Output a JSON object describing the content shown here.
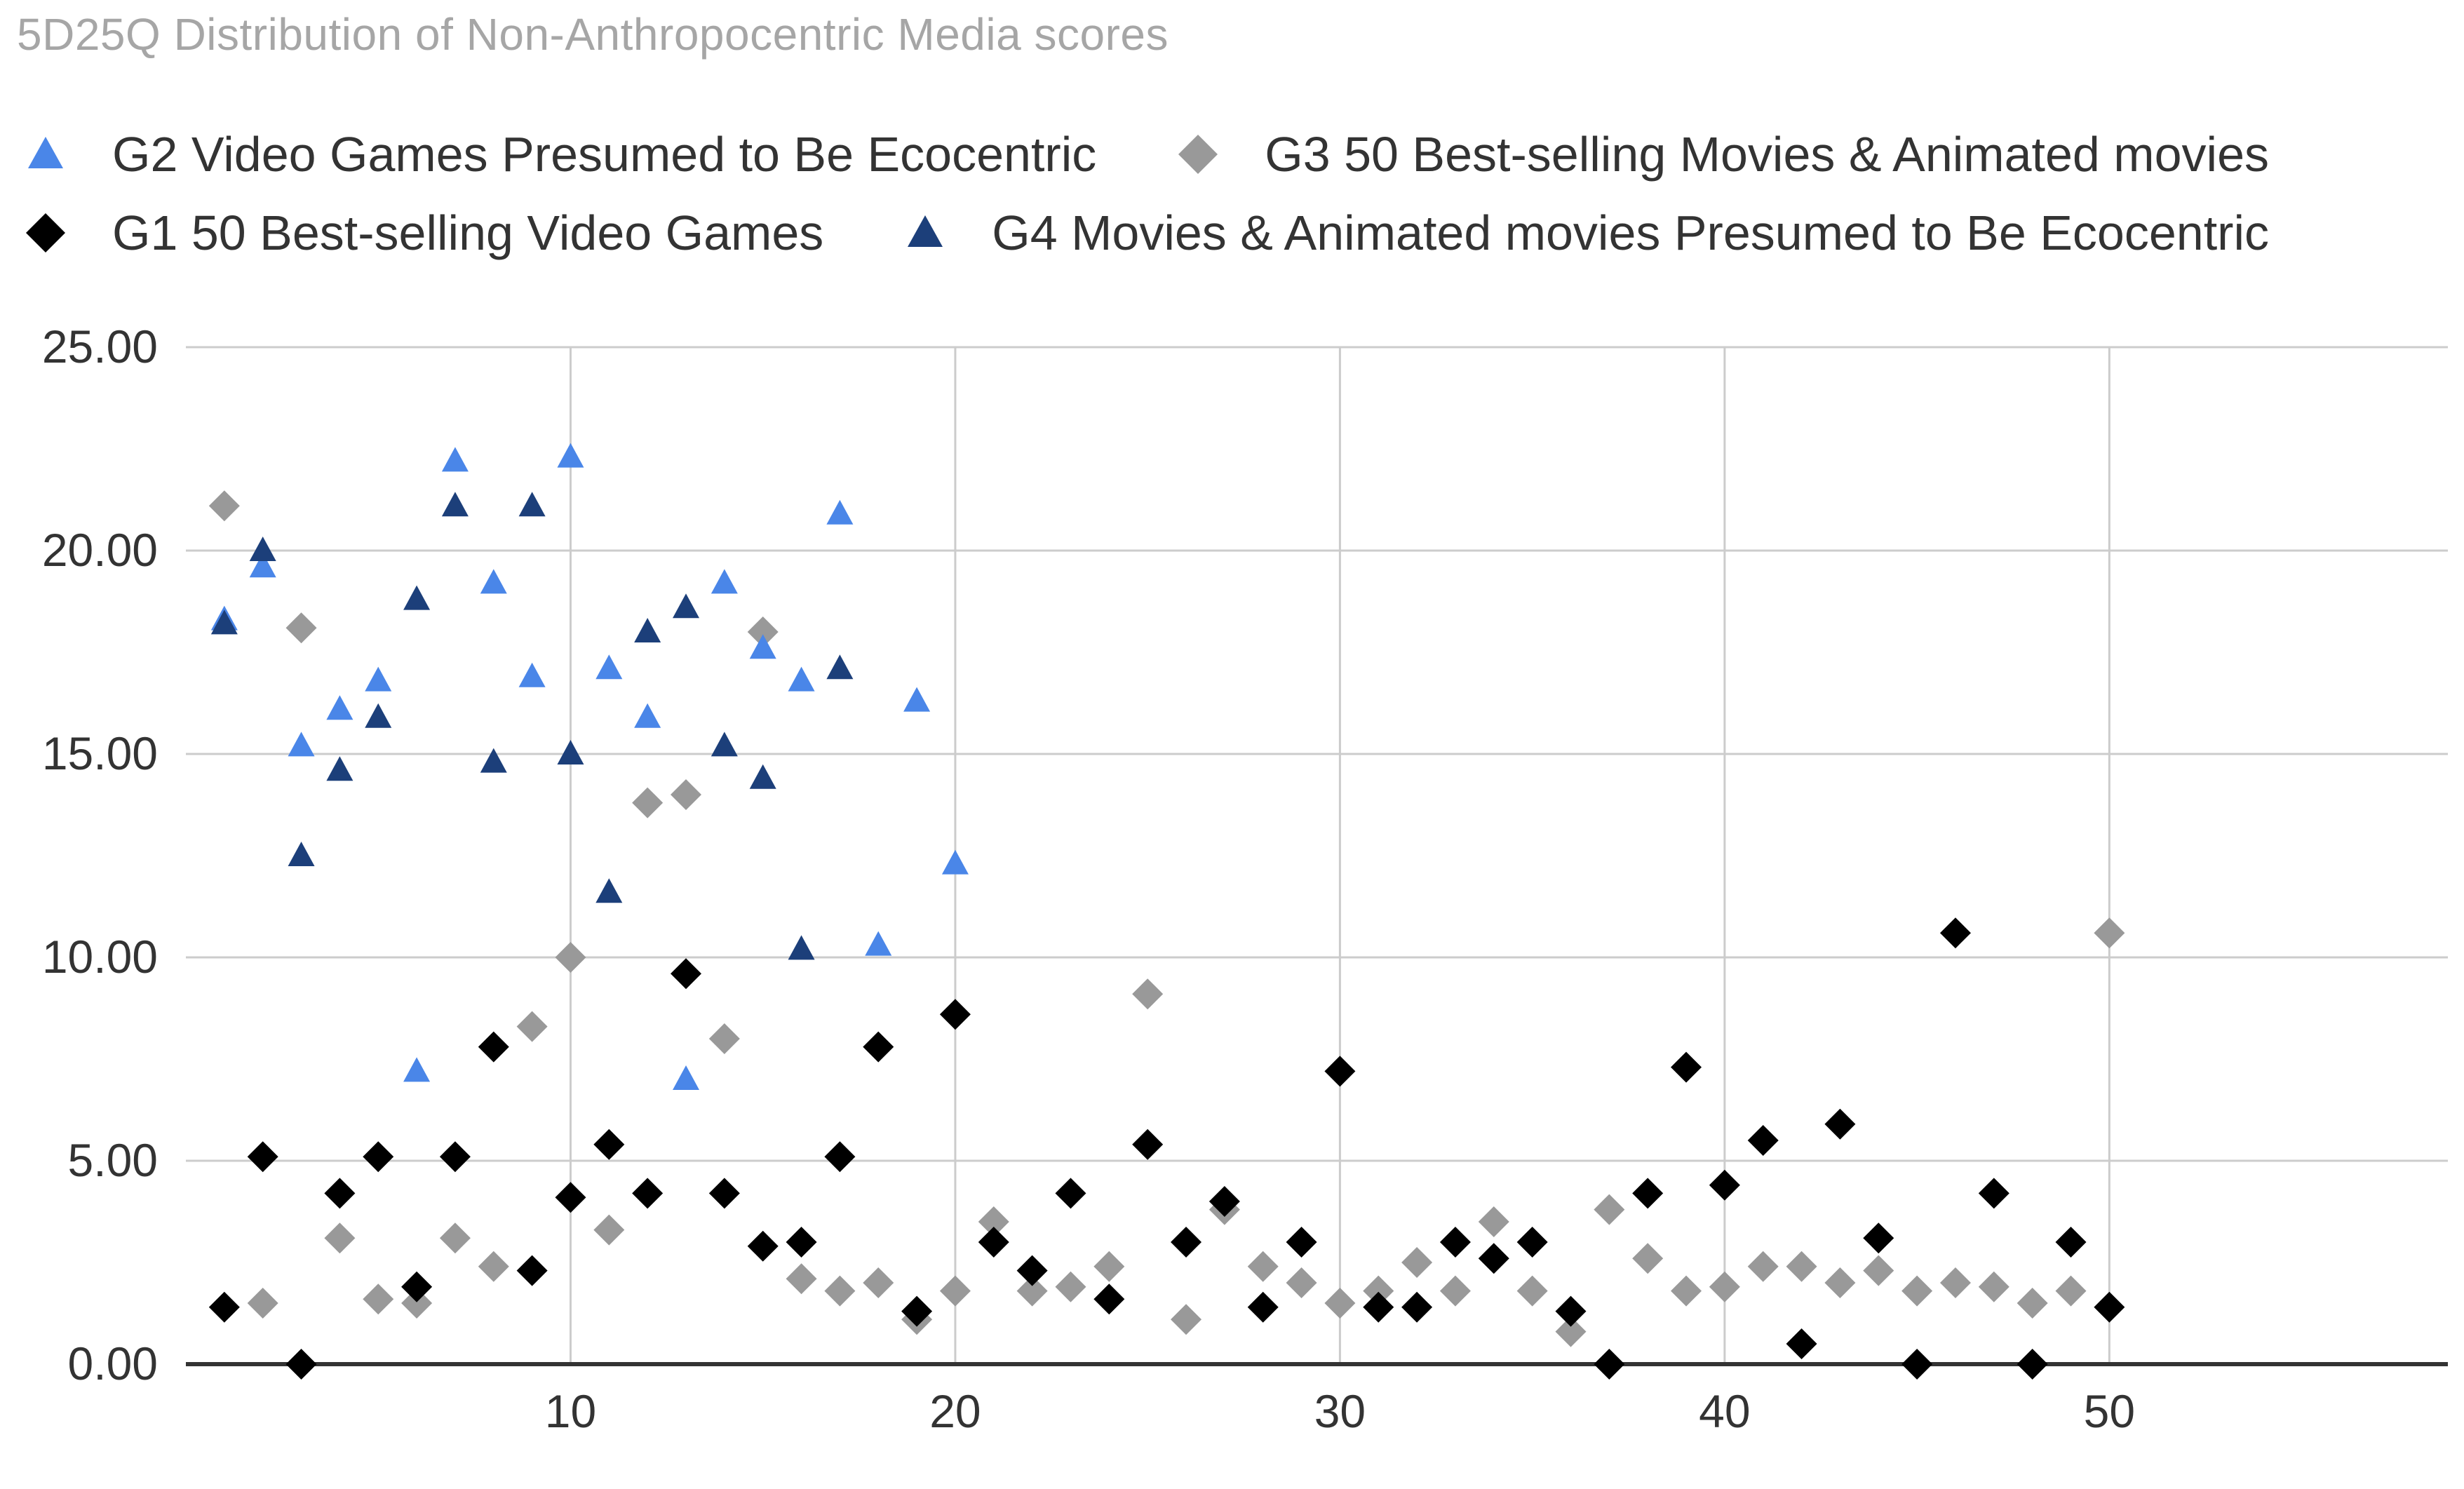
{
  "title": "5D25Q Distribution of Non-Anthropocentric Media scores",
  "legend": {
    "g2": "G2 Video Games Presumed to Be Ecocentric",
    "g3": "G3 50 Best-selling Movies & Animated movies",
    "g1": "G1 50 Best-selling Video Games",
    "g4": "G4 Movies & Animated movies Presumed to Be Ecocentric"
  },
  "colors": {
    "g1": "#000000",
    "g2": "#4a86e8",
    "g3": "#999999",
    "g4": "#1c3f7a",
    "grid": "#cccccc",
    "axis": "#333333"
  },
  "chart_data": {
    "type": "scatter",
    "title": "5D25Q Distribution of Non-Anthropocentric Media scores",
    "xlabel": "",
    "ylabel": "",
    "xlim": [
      0,
      58.8
    ],
    "ylim": [
      0,
      25
    ],
    "x_ticks": [
      "10",
      "20",
      "30",
      "40",
      "50"
    ],
    "y_ticks": [
      "0.00",
      "5.00",
      "10.00",
      "15.00",
      "20.00",
      "25.00"
    ],
    "grid": true,
    "legend_position": "top",
    "series": [
      {
        "key": "g2",
        "name": "G2 Video Games Presumed to Be Ecocentric",
        "marker": "triangle",
        "x": [
          1,
          2,
          3,
          4,
          5,
          6,
          7,
          8,
          9,
          10,
          11,
          12,
          13,
          14,
          15,
          16,
          17,
          18,
          19,
          20
        ],
        "y": [
          18.3,
          19.6,
          15.2,
          16.1,
          16.8,
          7.2,
          22.2,
          19.2,
          16.9,
          22.3,
          17.1,
          15.9,
          7.0,
          19.2,
          17.6,
          16.8,
          20.9,
          10.3,
          16.3,
          12.3
        ]
      },
      {
        "key": "g3",
        "name": "G3 50 Best-selling Movies & Animated movies",
        "marker": "diamond",
        "x": [
          1,
          2,
          3,
          4,
          5,
          6,
          7,
          8,
          9,
          10,
          11,
          12,
          13,
          14,
          15,
          16,
          17,
          18,
          19,
          20,
          21,
          22,
          23,
          24,
          25,
          26,
          27,
          28,
          29,
          30,
          31,
          32,
          33,
          34,
          35,
          36,
          37,
          38,
          39,
          40,
          41,
          42,
          43,
          44,
          45,
          46,
          47,
          48,
          49,
          50
        ],
        "y": [
          21.1,
          1.5,
          18.1,
          3.1,
          1.6,
          1.5,
          3.1,
          2.4,
          8.3,
          10.0,
          3.3,
          13.8,
          14.0,
          8.0,
          18.0,
          2.1,
          1.8,
          2.0,
          1.1,
          1.8,
          3.5,
          1.8,
          1.9,
          2.4,
          9.1,
          1.1,
          3.8,
          2.4,
          2.0,
          1.5,
          1.8,
          2.5,
          1.8,
          3.5,
          1.8,
          0.8,
          3.8,
          2.6,
          1.8,
          1.9,
          2.4,
          2.4,
          2.0,
          2.3,
          1.8,
          2.0,
          1.9,
          1.5,
          1.8,
          10.6
        ]
      },
      {
        "key": "g1",
        "name": "G1 50 Best-selling Video Games",
        "marker": "diamond",
        "x": [
          1,
          2,
          3,
          4,
          5,
          6,
          7,
          8,
          9,
          10,
          11,
          12,
          13,
          14,
          15,
          16,
          17,
          18,
          19,
          20,
          21,
          22,
          23,
          24,
          25,
          26,
          27,
          28,
          29,
          30,
          31,
          32,
          33,
          34,
          35,
          36,
          37,
          38,
          39,
          40,
          41,
          42,
          43,
          44,
          45,
          46,
          47,
          48,
          49,
          50
        ],
        "y": [
          1.4,
          5.1,
          0.0,
          4.2,
          5.1,
          1.9,
          5.1,
          7.8,
          2.3,
          4.1,
          5.4,
          4.2,
          9.6,
          4.2,
          2.9,
          3.0,
          5.1,
          7.8,
          1.3,
          8.6,
          3.0,
          2.3,
          4.2,
          1.6,
          5.4,
          3.0,
          4.0,
          1.4,
          3.0,
          7.2,
          1.4,
          1.4,
          3.0,
          2.6,
          3.0,
          1.3,
          0.0,
          4.2,
          7.3,
          4.4,
          5.5,
          0.5,
          5.9,
          3.1,
          0.0,
          10.6,
          4.2,
          0.0,
          3.0,
          1.4
        ]
      },
      {
        "key": "g4",
        "name": "G4 Movies & Animated movies Presumed to Be Ecocentric",
        "marker": "triangle",
        "x": [
          1,
          2,
          3,
          4,
          5,
          6,
          7,
          8,
          9,
          10,
          11,
          12,
          13,
          14,
          15,
          16,
          17
        ],
        "y": [
          18.2,
          20.0,
          12.5,
          14.6,
          15.9,
          18.8,
          21.1,
          14.8,
          21.1,
          15.0,
          11.6,
          18.0,
          18.6,
          15.2,
          14.4,
          10.2,
          17.1
        ]
      }
    ]
  }
}
